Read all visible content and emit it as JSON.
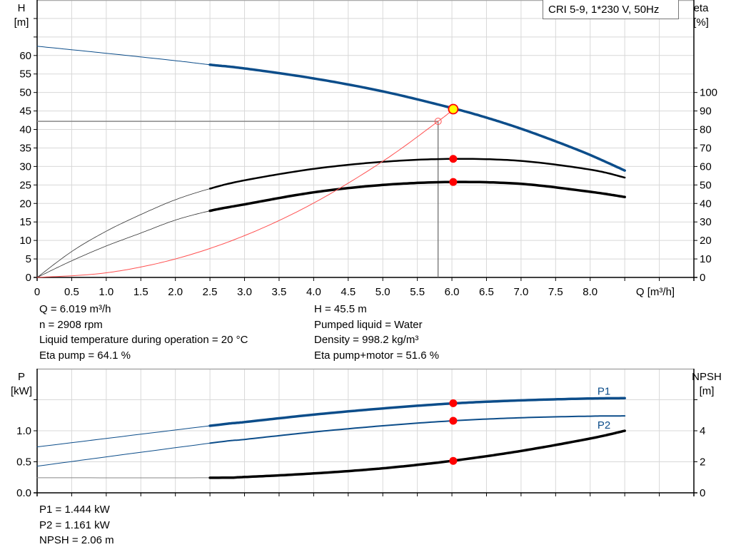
{
  "chart_data": [
    {
      "type": "line",
      "title": "CRI 5-9, 1*230 V, 50Hz",
      "xlabel": "Q [m³/h]",
      "ylabel": [
        "H",
        "[m]"
      ],
      "y2label": [
        "eta",
        "[%]"
      ],
      "xlim": [
        0,
        9.5
      ],
      "ylim": [
        0,
        75
      ],
      "y2lim": [
        0,
        150
      ],
      "grid": true,
      "x_ticks": [
        "0",
        "0.5",
        "1.0",
        "1.5",
        "2.0",
        "2.5",
        "3.0",
        "3.5",
        "4.0",
        "4.5",
        "5.0",
        "5.5",
        "6.0",
        "6.5",
        "7.0",
        "7.5",
        "8.0"
      ],
      "y_ticks": [
        "0",
        "5",
        "10",
        "15",
        "20",
        "25",
        "30",
        "35",
        "40",
        "45",
        "50",
        "55",
        "60"
      ],
      "y2_ticks": [
        "0",
        "10",
        "20",
        "30",
        "40",
        "50",
        "60",
        "70",
        "80",
        "90",
        "100"
      ],
      "series": [
        {
          "key": "H",
          "axis": "left",
          "color": "#0c4d8a",
          "x": [
            0,
            1,
            2,
            2.5,
            3,
            4,
            5,
            6,
            6.5,
            7,
            7.5,
            8,
            8.5
          ],
          "y": [
            62.5,
            60.6,
            58.6,
            57.5,
            56.5,
            53.8,
            50.3,
            45.8,
            43.2,
            40.2,
            36.8,
            33.1,
            28.9
          ]
        },
        {
          "key": "eta_pump",
          "axis": "right",
          "color": "#000000",
          "x": [
            0,
            0.5,
            1,
            1.5,
            2,
            2.5,
            3,
            4,
            5,
            6,
            7,
            8,
            8.5
          ],
          "y": [
            0,
            14,
            25,
            34,
            42,
            48,
            52.5,
            58.7,
            62.5,
            64.1,
            63,
            58.3,
            54
          ]
        },
        {
          "key": "eta_pump_motor",
          "axis": "right",
          "color": "#000000",
          "x": [
            0,
            0.5,
            1,
            1.5,
            2,
            2.5,
            3,
            4,
            5,
            6,
            7,
            8,
            8.5
          ],
          "y": [
            0,
            9,
            17,
            24,
            31,
            36,
            39.5,
            46,
            50,
            51.6,
            50.6,
            46.3,
            43.5
          ]
        },
        {
          "key": "system",
          "axis": "left",
          "color": "#ff5050",
          "x": [
            0,
            1,
            2,
            3,
            4,
            5,
            5.8,
            6.019
          ],
          "y": [
            0,
            1.25,
            5.0,
            11.3,
            20.1,
            31.4,
            42.2,
            45.4
          ]
        }
      ],
      "duty_point": {
        "Q": 6.019,
        "H": 45.5,
        "eta_pump": 64.1,
        "eta_pump_motor": 51.6
      },
      "reference_point": {
        "Q": 5.8,
        "H": 42.2
      }
    },
    {
      "type": "line",
      "ylabel": [
        "P",
        "[kW]"
      ],
      "y2label": [
        "NPSH",
        "[m]"
      ],
      "xlim": [
        0,
        9.5
      ],
      "ylim": [
        0,
        2.0
      ],
      "y2lim": [
        0,
        8
      ],
      "grid": true,
      "y_ticks": [
        "0.0",
        "0.5",
        "1.0"
      ],
      "y2_ticks": [
        "0",
        "2",
        "4"
      ],
      "series": [
        {
          "key": "P1",
          "name": "P1",
          "axis": "left",
          "color": "#0c4d8a",
          "x": [
            0,
            2.5,
            3,
            4,
            5,
            6,
            7,
            8,
            8.5
          ],
          "y": [
            0.74,
            1.08,
            1.14,
            1.26,
            1.36,
            1.44,
            1.49,
            1.52,
            1.525
          ]
        },
        {
          "key": "P2",
          "name": "P2",
          "axis": "left",
          "color": "#0c4d8a",
          "x": [
            0,
            2.5,
            3,
            4,
            5,
            6,
            7,
            8,
            8.5
          ],
          "y": [
            0.43,
            0.8,
            0.86,
            0.98,
            1.08,
            1.16,
            1.21,
            1.235,
            1.24
          ]
        },
        {
          "key": "NPSH",
          "axis": "right",
          "color": "#000000",
          "x": [
            0,
            2.5,
            3,
            4,
            5,
            6,
            7,
            8,
            8.5
          ],
          "y": [
            0.97,
            0.97,
            1.02,
            1.25,
            1.58,
            2.06,
            2.7,
            3.5,
            4.0
          ]
        }
      ],
      "duty_point": {
        "Q": 6.019,
        "P1": 1.444,
        "P2": 1.161,
        "NPSH": 2.06
      }
    }
  ],
  "info_top": {
    "left": [
      "Q = 6.019 m³/h",
      "n = 2908 rpm",
      "Liquid temperature during operation = 20 °C",
      "Eta pump = 64.1 %"
    ],
    "right": [
      "H = 45.5 m",
      "Pumped liquid = Water",
      "Density = 998.2 kg/m³",
      "Eta pump+motor = 51.6 %"
    ]
  },
  "info_bottom": [
    "P1 = 1.444 kW",
    "P2 = 1.161 kW",
    "NPSH = 2.06 m"
  ],
  "colors": {
    "blue": "#0c4d8a",
    "marker": "#ff0000",
    "duty_fill": "#ffff00",
    "grid": "#d8d8d8"
  }
}
